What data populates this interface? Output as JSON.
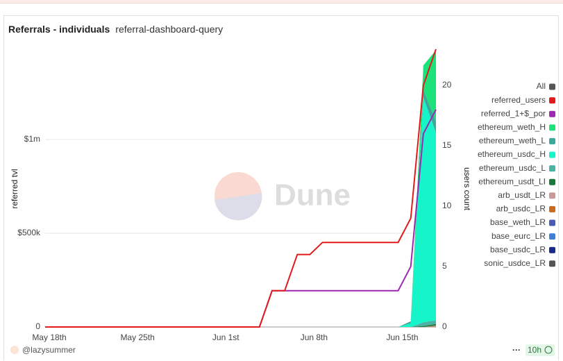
{
  "header": {
    "title": "Referrals - individuals",
    "query": "referral-dashboard-query"
  },
  "footer": {
    "user": "@lazysummer",
    "age": "10h",
    "menu": "···"
  },
  "chart_data": {
    "type": "combo",
    "watermark": "Dune",
    "y_label": "referred tvl",
    "y2_label": "users count",
    "legend_all": "All",
    "legend_all_color": "#555555",
    "categories": [
      "May 18th",
      null,
      null,
      null,
      null,
      null,
      null,
      "May 25th",
      null,
      null,
      null,
      null,
      null,
      null,
      "Jun 1st",
      null,
      null,
      null,
      null,
      null,
      null,
      "Jun 8th",
      null,
      null,
      null,
      null,
      null,
      null,
      "Jun 15th",
      null,
      null,
      null
    ],
    "ylim": [
      0,
      1466000
    ],
    "yticks": [
      {
        "value": 0,
        "label": "0"
      },
      {
        "value": 500000,
        "label": "$500k"
      },
      {
        "value": 1000000,
        "label": "$1m"
      }
    ],
    "y2lim": [
      0,
      22.76
    ],
    "y2ticks": [
      0,
      5,
      10,
      15,
      20
    ],
    "grid": true,
    "series": [
      {
        "name": "referred_users",
        "kind": "line",
        "axis": "y2",
        "color": "#e31a1c",
        "values": [
          0,
          0,
          0,
          0,
          0,
          0,
          0,
          0,
          0,
          0,
          0,
          0,
          0,
          0,
          0,
          0,
          0,
          0,
          3,
          3,
          6,
          6,
          7,
          7,
          7,
          7,
          7,
          7,
          7,
          9,
          20,
          23
        ]
      },
      {
        "name": "referred_1+$_por",
        "kind": "line",
        "axis": "y2",
        "color": "#9c27b0",
        "values": [
          0,
          0,
          0,
          0,
          0,
          0,
          0,
          0,
          0,
          0,
          0,
          0,
          0,
          0,
          0,
          0,
          0,
          0,
          3,
          3,
          3,
          3,
          3,
          3,
          3,
          3,
          3,
          3,
          3,
          5,
          16,
          18
        ]
      },
      {
        "name": "ethereum_weth_H",
        "kind": "area",
        "axis": "y",
        "color": "#1de27a",
        "values": [
          0,
          0,
          0,
          0,
          0,
          0,
          0,
          0,
          0,
          0,
          0,
          0,
          0,
          0,
          0,
          0,
          0,
          0,
          0,
          0,
          0,
          0,
          0,
          0,
          0,
          0,
          0,
          0,
          0,
          0,
          130000,
          380000
        ]
      },
      {
        "name": "ethereum_weth_L",
        "kind": "area",
        "axis": "y",
        "color": "#3aa89a",
        "values": [
          0,
          0,
          0,
          0,
          0,
          0,
          0,
          0,
          0,
          0,
          0,
          0,
          0,
          0,
          0,
          0,
          0,
          0,
          0,
          0,
          0,
          0,
          0,
          0,
          0,
          0,
          0,
          0,
          0,
          10000,
          40000,
          60000
        ]
      },
      {
        "name": "ethereum_usdc_H",
        "kind": "area",
        "axis": "y",
        "color": "#15f5c9",
        "values": [
          0,
          0,
          0,
          0,
          0,
          0,
          0,
          0,
          0,
          0,
          0,
          0,
          0,
          0,
          0,
          0,
          0,
          0,
          0,
          0,
          0,
          0,
          0,
          0,
          0,
          0,
          0,
          0,
          0,
          20000,
          1200000,
          1000000
        ]
      },
      {
        "name": "ethereum_usdc_L",
        "kind": "area",
        "axis": "y",
        "color": "#4ab3a3",
        "values": [
          0,
          0,
          0,
          0,
          0,
          0,
          0,
          0,
          0,
          0,
          0,
          0,
          0,
          0,
          0,
          0,
          0,
          0,
          0,
          0,
          0,
          0,
          0,
          0,
          0,
          0,
          0,
          0,
          0,
          0,
          20000,
          20000
        ]
      },
      {
        "name": "ethereum_usdt_LI",
        "kind": "area",
        "axis": "y",
        "color": "#1a7a3d",
        "values": [
          0,
          0,
          0,
          0,
          0,
          0,
          0,
          0,
          0,
          0,
          0,
          0,
          0,
          0,
          0,
          0,
          0,
          0,
          0,
          0,
          0,
          0,
          0,
          0,
          0,
          0,
          0,
          0,
          0,
          0,
          5000,
          8000
        ]
      },
      {
        "name": "arb_usdt_LR",
        "kind": "area",
        "axis": "y",
        "color": "#c99a9a",
        "values": [
          0,
          0,
          0,
          0,
          0,
          0,
          0,
          0,
          0,
          0,
          0,
          0,
          0,
          0,
          0,
          0,
          0,
          0,
          0,
          0,
          0,
          0,
          0,
          0,
          0,
          0,
          0,
          0,
          0,
          0,
          0,
          5000
        ]
      },
      {
        "name": "arb_usdc_LR",
        "kind": "area",
        "axis": "y",
        "color": "#c8691d",
        "values": [
          0,
          0,
          0,
          0,
          0,
          0,
          0,
          0,
          0,
          0,
          0,
          0,
          0,
          0,
          0,
          0,
          0,
          0,
          0,
          0,
          0,
          0,
          0,
          0,
          0,
          0,
          0,
          0,
          0,
          0,
          0,
          3000
        ]
      },
      {
        "name": "base_weth_LR",
        "kind": "area",
        "axis": "y",
        "color": "#4a5bb5",
        "values": [
          0,
          0,
          0,
          0,
          0,
          0,
          0,
          0,
          0,
          0,
          0,
          0,
          0,
          0,
          0,
          0,
          0,
          0,
          0,
          0,
          0,
          0,
          0,
          0,
          0,
          0,
          0,
          0,
          0,
          0,
          0,
          0
        ]
      },
      {
        "name": "base_eurc_LR",
        "kind": "area",
        "axis": "y",
        "color": "#3f7fd6",
        "values": [
          0,
          0,
          0,
          0,
          0,
          0,
          0,
          0,
          0,
          0,
          0,
          0,
          0,
          0,
          0,
          0,
          0,
          0,
          0,
          0,
          0,
          0,
          0,
          0,
          0,
          0,
          0,
          0,
          0,
          0,
          0,
          0
        ]
      },
      {
        "name": "base_usdc_LR",
        "kind": "area",
        "axis": "y",
        "color": "#1a2a8a",
        "values": [
          0,
          0,
          0,
          0,
          0,
          0,
          0,
          0,
          0,
          0,
          0,
          0,
          0,
          0,
          0,
          0,
          0,
          0,
          0,
          0,
          0,
          0,
          0,
          0,
          0,
          0,
          0,
          0,
          0,
          0,
          0,
          0
        ]
      },
      {
        "name": "sonic_usdce_LR",
        "kind": "area",
        "axis": "y",
        "color": "#555555",
        "values": [
          0,
          0,
          0,
          0,
          0,
          0,
          0,
          0,
          0,
          0,
          0,
          0,
          0,
          0,
          0,
          0,
          0,
          0,
          0,
          0,
          0,
          0,
          0,
          0,
          0,
          0,
          0,
          0,
          0,
          0,
          0,
          0
        ]
      }
    ]
  }
}
